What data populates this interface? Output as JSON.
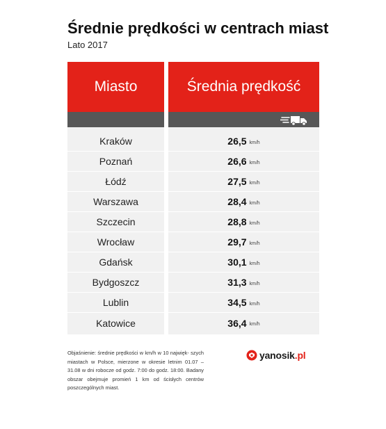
{
  "header": {
    "title": "Średnie prędkości w centrach miast",
    "subtitle": "Lato 2017"
  },
  "table": {
    "col_city": "Miasto",
    "col_speed": "Średnia prędkość",
    "unit": "km/h",
    "rows": [
      {
        "city": "Kraków",
        "speed": "26,5"
      },
      {
        "city": "Poznań",
        "speed": "26,6"
      },
      {
        "city": "Łódź",
        "speed": "27,5"
      },
      {
        "city": "Warszawa",
        "speed": "28,4"
      },
      {
        "city": "Szczecin",
        "speed": "28,8"
      },
      {
        "city": "Wrocław",
        "speed": "29,7"
      },
      {
        "city": "Gdańsk",
        "speed": "30,1"
      },
      {
        "city": "Bydgoszcz",
        "speed": "31,3"
      },
      {
        "city": "Lublin",
        "speed": "34,5"
      },
      {
        "city": "Katowice",
        "speed": "36,4"
      }
    ]
  },
  "footnote": "Objaśnienie: średnie prędkości w km/h w 10 najwięk- szych miastach w Polsce, mierzone w okresie letnim 01.07 – 31.08 w dni robocze od godz. 7:00 do godz. 18:00. Badany obszar obejmuje promień 1 km od ścisłych centrów poszczególnych miast.",
  "logo": {
    "name": "yanosik",
    "suffix": ".pl"
  },
  "colors": {
    "accent": "#e32219",
    "subheader": "#575757",
    "table_bg": "#f1f1f1"
  },
  "icons": [
    "truck-icon",
    "yanosik-logo-icon"
  ]
}
